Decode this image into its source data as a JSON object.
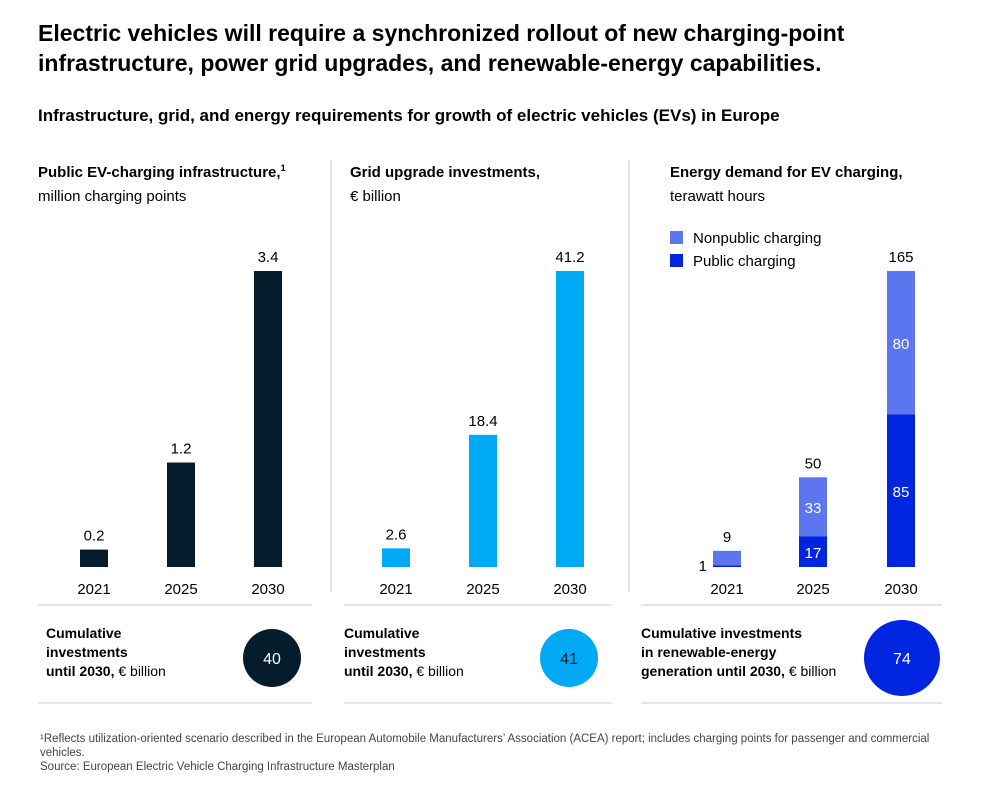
{
  "title": "Electric vehicles will require a synchronized rollout of new charging-point infrastructure, power grid upgrades, and renewable-energy capabilities.",
  "subtitle": "Infrastructure, grid, and energy requirements for growth of electric vehicles (EVs) in Europe",
  "chart_data": [
    {
      "type": "bar",
      "title": "Public EV-charging infrastructure,",
      "title_sup": "1",
      "unit": "million charging points",
      "categories": [
        "2021",
        "2025",
        "2030"
      ],
      "values": [
        0.2,
        1.2,
        3.4
      ],
      "labels": [
        "0.2",
        "1.2",
        "3.4"
      ],
      "color": "#051c2c",
      "cumulative": {
        "label_bold": "Cumulative investments until 2030,",
        "label_unit": "€ billion",
        "value": "40",
        "color": "#051c2c"
      }
    },
    {
      "type": "bar",
      "title": "Grid upgrade investments,",
      "unit": "€ billion",
      "categories": [
        "2021",
        "2025",
        "2030"
      ],
      "values": [
        2.6,
        18.4,
        41.2
      ],
      "labels": [
        "2.6",
        "18.4",
        "41.2"
      ],
      "color": "#00a9f4",
      "cumulative": {
        "label_bold": "Cumulative investments until 2030,",
        "label_unit": "€ billion",
        "value": "41",
        "color": "#00a9f4"
      }
    },
    {
      "type": "bar",
      "stacked": true,
      "title": "Energy demand for EV charging,",
      "unit": "terawatt hours",
      "categories": [
        "2021",
        "2025",
        "2030"
      ],
      "series": [
        {
          "name": "Public charging",
          "values": [
            1,
            17,
            85
          ],
          "labels": [
            "1",
            "17",
            "85"
          ],
          "color": "#0025e0"
        },
        {
          "name": "Nonpublic charging",
          "values": [
            8,
            33,
            80
          ],
          "labels": [
            "",
            "33",
            "80"
          ],
          "color": "#5b76ee"
        }
      ],
      "totals": [
        "9",
        "50",
        "165"
      ],
      "legend": "top-left",
      "cumulative": {
        "label_bold": "Cumulative investments in renewable-energy generation until 2030,",
        "label_unit": "€ billion",
        "value": "74",
        "color": "#0025e0"
      }
    }
  ],
  "footnote": "¹Reflects utilization-oriented scenario described in the European Automobile Manufacturers’ Association (ACEA) report; includes charging points for passenger and commercial vehicles.",
  "source": "Source: European Electric Vehicle Charging Infrastructure Masterplan"
}
